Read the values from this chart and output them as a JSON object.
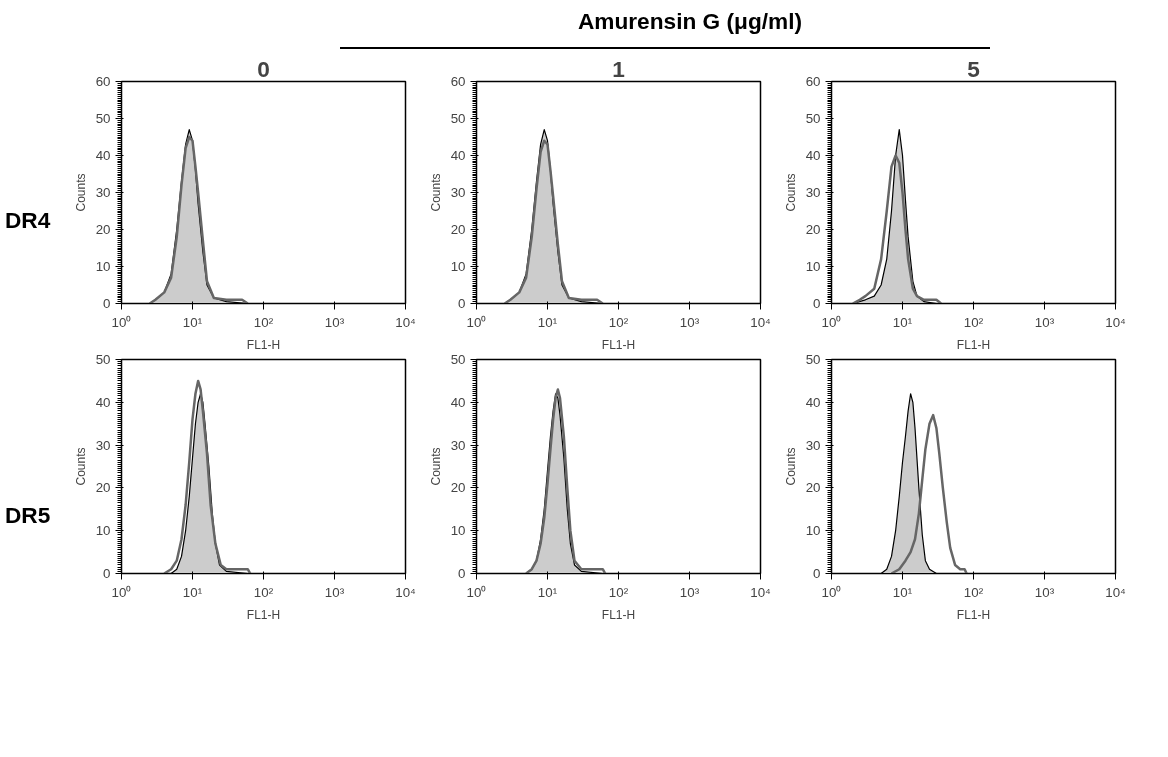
{
  "chart_data": [
    {
      "type": "area",
      "title": "0",
      "annotations": [
        "Amurensin G (μg/ml)",
        "DR4"
      ],
      "xlabel": "FL1-H",
      "ylabel": "Counts",
      "log": "x",
      "xlim": [
        1,
        10000
      ],
      "ylim": [
        0,
        60
      ],
      "xticks": [
        {
          "value": 1,
          "label": "10⁰"
        },
        {
          "value": 10,
          "label": "10¹"
        },
        {
          "value": 100,
          "label": "10²"
        },
        {
          "value": 1000,
          "label": "10³"
        },
        {
          "value": 10000,
          "label": "10⁴"
        }
      ],
      "yticks": [
        0,
        10,
        20,
        30,
        40,
        50,
        60
      ],
      "grid": false,
      "series": [
        {
          "color": "#cccccc",
          "x": [
            2.5,
            3,
            4,
            5,
            6,
            7,
            8,
            9,
            10,
            11,
            12,
            14,
            16,
            20,
            30,
            60
          ],
          "values": [
            0,
            1,
            3,
            8,
            20,
            33,
            43,
            47,
            44,
            36,
            27,
            14,
            5,
            1.5,
            0.5,
            0
          ]
        },
        {
          "type": "line",
          "color": "#666666",
          "x": [
            2.5,
            3,
            4,
            5,
            6,
            7,
            8,
            9,
            10,
            11,
            12,
            14,
            16,
            20,
            30,
            50,
            60
          ],
          "values": [
            0,
            1,
            3,
            7,
            18,
            32,
            42,
            45,
            44,
            37,
            30,
            17,
            6,
            1.5,
            1,
            1,
            0
          ]
        }
      ]
    },
    {
      "type": "area",
      "title": "1",
      "xlabel": "FL1-H",
      "ylabel": "Counts",
      "log": "x",
      "xlim": [
        1,
        10000
      ],
      "ylim": [
        0,
        60
      ],
      "xticks": [
        {
          "value": 1,
          "label": "10⁰"
        },
        {
          "value": 10,
          "label": "10¹"
        },
        {
          "value": 100,
          "label": "10²"
        },
        {
          "value": 1000,
          "label": "10³"
        },
        {
          "value": 10000,
          "label": "10⁴"
        }
      ],
      "yticks": [
        0,
        10,
        20,
        30,
        40,
        50,
        60
      ],
      "grid": false,
      "series": [
        {
          "color": "#cccccc",
          "x": [
            2.5,
            3,
            4,
            5,
            6,
            7,
            8,
            9,
            10,
            11,
            12,
            14,
            16,
            20,
            30,
            60
          ],
          "values": [
            0,
            1,
            3,
            8,
            20,
            33,
            43,
            47,
            44,
            36,
            27,
            14,
            5,
            1.5,
            0.5,
            0
          ]
        },
        {
          "type": "line",
          "color": "#666666",
          "x": [
            2.5,
            3,
            4,
            5,
            6,
            7,
            8,
            9,
            10,
            11,
            12,
            14,
            16,
            20,
            30,
            50,
            60
          ],
          "values": [
            0,
            1,
            3,
            7,
            18,
            31,
            41,
            44,
            43,
            36,
            29,
            16,
            6,
            1.5,
            1,
            1,
            0
          ]
        }
      ]
    },
    {
      "type": "area",
      "title": "5",
      "xlabel": "FL1-H",
      "ylabel": "Counts",
      "log": "x",
      "xlim": [
        1,
        10000
      ],
      "ylim": [
        0,
        60
      ],
      "xticks": [
        {
          "value": 1,
          "label": "10⁰"
        },
        {
          "value": 10,
          "label": "10¹"
        },
        {
          "value": 100,
          "label": "10²"
        },
        {
          "value": 1000,
          "label": "10³"
        },
        {
          "value": 10000,
          "label": "10⁴"
        }
      ],
      "yticks": [
        0,
        10,
        20,
        30,
        40,
        50,
        60
      ],
      "grid": false,
      "series": [
        {
          "color": "#cccccc",
          "x": [
            2,
            3,
            4,
            5,
            6,
            7,
            8,
            9,
            10,
            11,
            12,
            14,
            16,
            20,
            30
          ],
          "values": [
            0,
            1,
            2,
            5,
            12,
            25,
            40,
            47,
            40,
            28,
            18,
            6,
            2,
            0.5,
            0
          ]
        },
        {
          "type": "line",
          "color": "#666666",
          "x": [
            2,
            2.5,
            3,
            4,
            5,
            6,
            7,
            8,
            9,
            10,
            11,
            12,
            14,
            16,
            20,
            30,
            35
          ],
          "values": [
            0,
            1,
            2,
            4,
            12,
            25,
            37,
            40,
            38,
            30,
            20,
            12,
            4,
            2,
            1,
            1,
            0
          ]
        }
      ]
    },
    {
      "type": "area",
      "annotations": [
        "DR5"
      ],
      "xlabel": "FL1-H",
      "ylabel": "Counts",
      "log": "x",
      "xlim": [
        1,
        10000
      ],
      "ylim": [
        0,
        50
      ],
      "xticks": [
        {
          "value": 1,
          "label": "10⁰"
        },
        {
          "value": 10,
          "label": "10¹"
        },
        {
          "value": 100,
          "label": "10²"
        },
        {
          "value": 1000,
          "label": "10³"
        },
        {
          "value": 10000,
          "label": "10⁴"
        }
      ],
      "yticks": [
        0,
        10,
        20,
        30,
        40,
        50
      ],
      "grid": false,
      "series": [
        {
          "color": "#cccccc",
          "x": [
            5,
            6,
            7,
            8,
            9,
            10,
            11,
            12,
            13,
            14,
            15,
            17,
            19,
            21,
            24,
            30,
            60
          ],
          "values": [
            0,
            1,
            4,
            10,
            18,
            27,
            35,
            40,
            42,
            40,
            35,
            25,
            14,
            7,
            2,
            0.5,
            0
          ]
        },
        {
          "type": "line",
          "color": "#666666",
          "x": [
            4,
            5,
            6,
            7,
            8,
            9,
            10,
            11,
            12,
            13,
            14,
            16,
            18,
            21,
            25,
            30,
            60,
            65
          ],
          "values": [
            0,
            1,
            3,
            8,
            16,
            26,
            36,
            42,
            45,
            43,
            38,
            28,
            16,
            7,
            2,
            1,
            1,
            0
          ]
        }
      ]
    },
    {
      "type": "area",
      "xlabel": "FL1-H",
      "ylabel": "Counts",
      "log": "x",
      "xlim": [
        1,
        10000
      ],
      "ylim": [
        0,
        50
      ],
      "xticks": [
        {
          "value": 1,
          "label": "10⁰"
        },
        {
          "value": 10,
          "label": "10¹"
        },
        {
          "value": 100,
          "label": "10²"
        },
        {
          "value": 1000,
          "label": "10³"
        },
        {
          "value": 10000,
          "label": "10⁴"
        }
      ],
      "yticks": [
        0,
        10,
        20,
        30,
        40,
        50
      ],
      "grid": false,
      "series": [
        {
          "color": "#cccccc",
          "x": [
            5,
            6,
            7,
            8,
            9,
            10,
            11,
            12,
            13,
            14,
            15,
            17,
            19,
            21,
            24,
            30,
            60
          ],
          "values": [
            0,
            1,
            3,
            8,
            15,
            24,
            32,
            38,
            42,
            41,
            37,
            27,
            15,
            7,
            2,
            0.5,
            0
          ]
        },
        {
          "type": "line",
          "color": "#666666",
          "x": [
            5,
            6,
            7,
            8,
            9,
            10,
            11,
            12,
            13,
            14,
            15,
            17,
            19,
            21,
            24,
            30,
            60,
            65
          ],
          "values": [
            0,
            1,
            3,
            7,
            13,
            21,
            29,
            36,
            41,
            43,
            41,
            32,
            20,
            10,
            3,
            1,
            1,
            0
          ]
        }
      ]
    },
    {
      "type": "area",
      "xlabel": "FL1-H",
      "ylabel": "Counts",
      "log": "x",
      "xlim": [
        1,
        10000
      ],
      "ylim": [
        0,
        50
      ],
      "xticks": [
        {
          "value": 1,
          "label": "10⁰"
        },
        {
          "value": 10,
          "label": "10¹"
        },
        {
          "value": 100,
          "label": "10²"
        },
        {
          "value": 1000,
          "label": "10³"
        },
        {
          "value": 10000,
          "label": "10⁴"
        }
      ],
      "yticks": [
        0,
        10,
        20,
        30,
        40,
        50
      ],
      "grid": false,
      "series": [
        {
          "color": "#cccccc",
          "x": [
            5,
            6,
            7,
            8,
            9,
            10,
            11,
            12,
            13,
            14,
            15,
            17,
            19,
            21,
            24,
            30
          ],
          "values": [
            0,
            1,
            4,
            10,
            18,
            26,
            32,
            38,
            42,
            40,
            34,
            20,
            9,
            3,
            1,
            0
          ]
        },
        {
          "type": "line",
          "color": "#666666",
          "x": [
            7,
            9,
            11,
            13,
            15,
            17,
            19,
            21,
            24,
            27,
            30,
            33,
            37,
            42,
            47,
            55,
            65,
            75,
            80
          ],
          "values": [
            0,
            1,
            3,
            5,
            8,
            14,
            22,
            29,
            35,
            37,
            34,
            28,
            20,
            12,
            6,
            2,
            1,
            1,
            0
          ]
        }
      ]
    }
  ]
}
